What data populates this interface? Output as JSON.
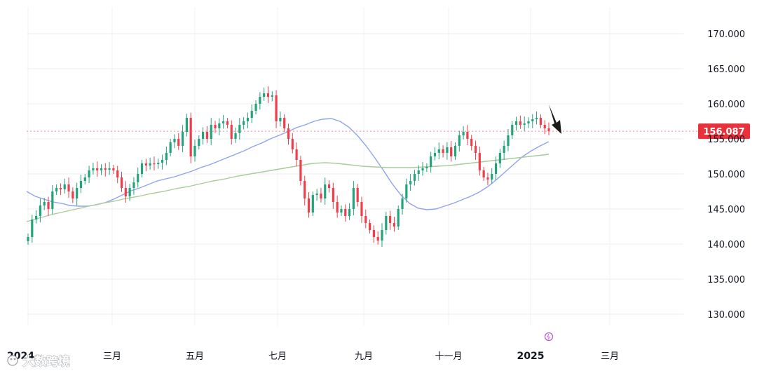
{
  "chart_data": {
    "type": "candlestick",
    "y_ticks": [
      "170.000",
      "165.000",
      "160.000",
      "155.000",
      "150.000",
      "145.000",
      "140.000",
      "135.000",
      "130.000"
    ],
    "ylim": [
      127,
      173
    ],
    "x_ticks": [
      {
        "label": "2024",
        "bold": true
      },
      {
        "label": "三月",
        "bold": false
      },
      {
        "label": "五月",
        "bold": false
      },
      {
        "label": "七月",
        "bold": false
      },
      {
        "label": "九月",
        "bold": false
      },
      {
        "label": "十一月",
        "bold": false
      },
      {
        "label": "2025",
        "bold": true
      },
      {
        "label": "三月",
        "bold": false
      }
    ],
    "last_price": "156.087",
    "last_price_value": 156.087,
    "closes": [
      141.0,
      143.5,
      144.0,
      145.5,
      146.0,
      145.0,
      147.5,
      148.0,
      147.8,
      148.5,
      147.5,
      146.5,
      148.0,
      149.0,
      149.5,
      150.5,
      150.8,
      150.5,
      150.8,
      150.6,
      150.8,
      150.5,
      149.5,
      148.0,
      146.8,
      148.0,
      148.8,
      150.0,
      151.5,
      151.2,
      151.5,
      151.4,
      151.6,
      152.0,
      153.0,
      154.5,
      155.0,
      154.0,
      156.0,
      158.0,
      152.5,
      154.0,
      155.0,
      156.0,
      155.0,
      157.0,
      156.5,
      157.2,
      157.5,
      157.0,
      155.0,
      155.8,
      157.0,
      157.5,
      158.0,
      159.0,
      160.0,
      161.0,
      161.5,
      161.0,
      161.2,
      157.5,
      158.0,
      156.5,
      155.0,
      153.5,
      152.0,
      149.0,
      146.5,
      144.5,
      147.0,
      147.2,
      146.5,
      148.5,
      148.0,
      146.0,
      144.5,
      145.0,
      144.0,
      145.0,
      148.0,
      146.0,
      144.0,
      143.0,
      142.0,
      141.0,
      140.5,
      142.0,
      144.0,
      143.0,
      142.5,
      145.0,
      146.5,
      148.5,
      149.0,
      150.0,
      150.5,
      150.8,
      151.0,
      152.5,
      153.0,
      153.5,
      153.0,
      153.8,
      152.5,
      154.0,
      155.5,
      156.0,
      155.0,
      154.0,
      153.0,
      150.5,
      149.5,
      149.2,
      150.0,
      151.5,
      153.0,
      154.0,
      155.5,
      157.0,
      157.5,
      157.0,
      157.2,
      157.5,
      157.8,
      158.0,
      157.0,
      156.5,
      156.087
    ],
    "series": [
      {
        "values": [
          147.5,
          146.8,
          146.4,
          146.0,
          145.8,
          145.5,
          145.4,
          145.4,
          145.6,
          145.9,
          146.4,
          147.0,
          147.6,
          148.0,
          148.5,
          149.0,
          149.3,
          149.6,
          150.0,
          150.4,
          150.9,
          151.3,
          151.8,
          152.3,
          152.8,
          153.3,
          153.9,
          154.4,
          155.0,
          155.5,
          156.0,
          156.6,
          157.0,
          157.5,
          157.8,
          157.9,
          157.5,
          156.7,
          155.5,
          154.0,
          152.3,
          150.5,
          148.6,
          147.0,
          145.8,
          145.1,
          144.9,
          145.0,
          145.4,
          145.8,
          146.3,
          146.8,
          147.4,
          148.2,
          149.2,
          150.3,
          151.4,
          152.5,
          153.3,
          154.0,
          154.6
        ]
      },
      {
        "values": [
          143.2,
          143.7,
          144.2,
          144.6,
          145.0,
          145.4,
          145.8,
          146.1,
          146.5,
          146.8,
          147.2,
          147.5,
          147.9,
          148.2,
          148.6,
          149.0,
          149.3,
          149.7,
          150.0,
          150.3,
          150.6,
          150.9,
          151.2,
          151.5,
          151.6,
          151.5,
          151.3,
          151.1,
          151.0,
          150.9,
          150.9,
          150.9,
          151.0,
          151.1,
          151.2,
          151.4,
          151.6,
          151.8,
          152.0,
          152.2,
          152.4,
          152.6,
          152.8
        ]
      }
    ]
  }
}
